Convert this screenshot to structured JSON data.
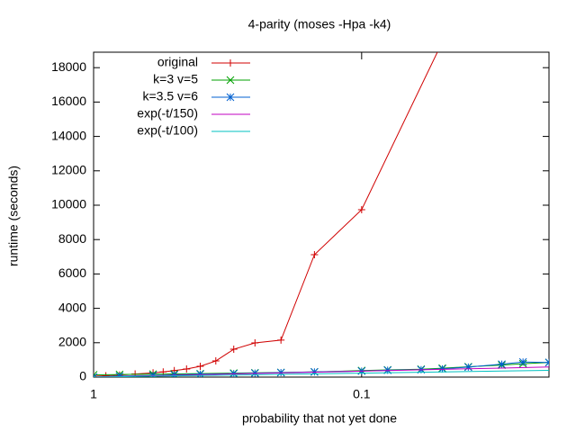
{
  "chart_data": {
    "type": "line",
    "title": "4-parity (moses -Hpa -k4)",
    "x_label": "probability that not yet done",
    "y_label": "runtime (seconds)",
    "x_scale": "log",
    "xlim": [
      1,
      0.02
    ],
    "xticks": [
      1,
      0.1
    ],
    "ylim": [
      0,
      18900
    ],
    "yticks": [
      0,
      2000,
      4000,
      6000,
      8000,
      10000,
      12000,
      14000,
      16000,
      18000
    ],
    "legend": "top-left",
    "series": [
      {
        "name": "original",
        "color": "#d00000",
        "marker": "plus",
        "x": [
          1,
          0.9,
          0.8,
          0.7,
          0.6,
          0.55,
          0.5,
          0.45,
          0.4,
          0.35,
          0.3,
          0.25,
          0.2,
          0.15,
          0.1,
          0.05
        ],
        "values": [
          50,
          80,
          120,
          180,
          250,
          300,
          380,
          470,
          630,
          940,
          1620,
          1990,
          2150,
          7120,
          9740,
          19500
        ]
      },
      {
        "name": "k=3 v=5",
        "color": "#00a000",
        "marker": "cross",
        "x": [
          1,
          0.8,
          0.6,
          0.5,
          0.4,
          0.3,
          0.25,
          0.2,
          0.15,
          0.1,
          0.08,
          0.06,
          0.05,
          0.04,
          0.03,
          0.025,
          0.02
        ],
        "values": [
          130,
          150,
          170,
          180,
          200,
          230,
          250,
          270,
          300,
          380,
          420,
          460,
          520,
          600,
          700,
          780,
          850
        ]
      },
      {
        "name": "k=3.5 v=6",
        "color": "#0060d0",
        "marker": "star",
        "x": [
          1,
          0.8,
          0.6,
          0.5,
          0.4,
          0.3,
          0.25,
          0.2,
          0.15,
          0.1,
          0.08,
          0.06,
          0.05,
          0.04,
          0.03,
          0.025,
          0.02
        ],
        "values": [
          0,
          60,
          100,
          130,
          170,
          200,
          230,
          260,
          300,
          350,
          400,
          430,
          480,
          580,
          750,
          880,
          850
        ]
      },
      {
        "name": "exp(-t/150)",
        "color": "#c000c0",
        "marker": "none",
        "x": [
          1,
          0.8,
          0.6,
          0.5,
          0.4,
          0.3,
          0.2,
          0.1,
          0.05,
          0.03,
          0.02
        ],
        "values": [
          0,
          33,
          77,
          104,
          137,
          181,
          241,
          345,
          449,
          526,
          587
        ]
      },
      {
        "name": "exp(-t/100)",
        "color": "#00c0c0",
        "marker": "none",
        "x": [
          1,
          0.8,
          0.6,
          0.5,
          0.4,
          0.3,
          0.2,
          0.1,
          0.05,
          0.03,
          0.02
        ],
        "values": [
          0,
          22,
          51,
          69,
          92,
          120,
          161,
          230,
          300,
          351,
          391
        ]
      }
    ]
  }
}
